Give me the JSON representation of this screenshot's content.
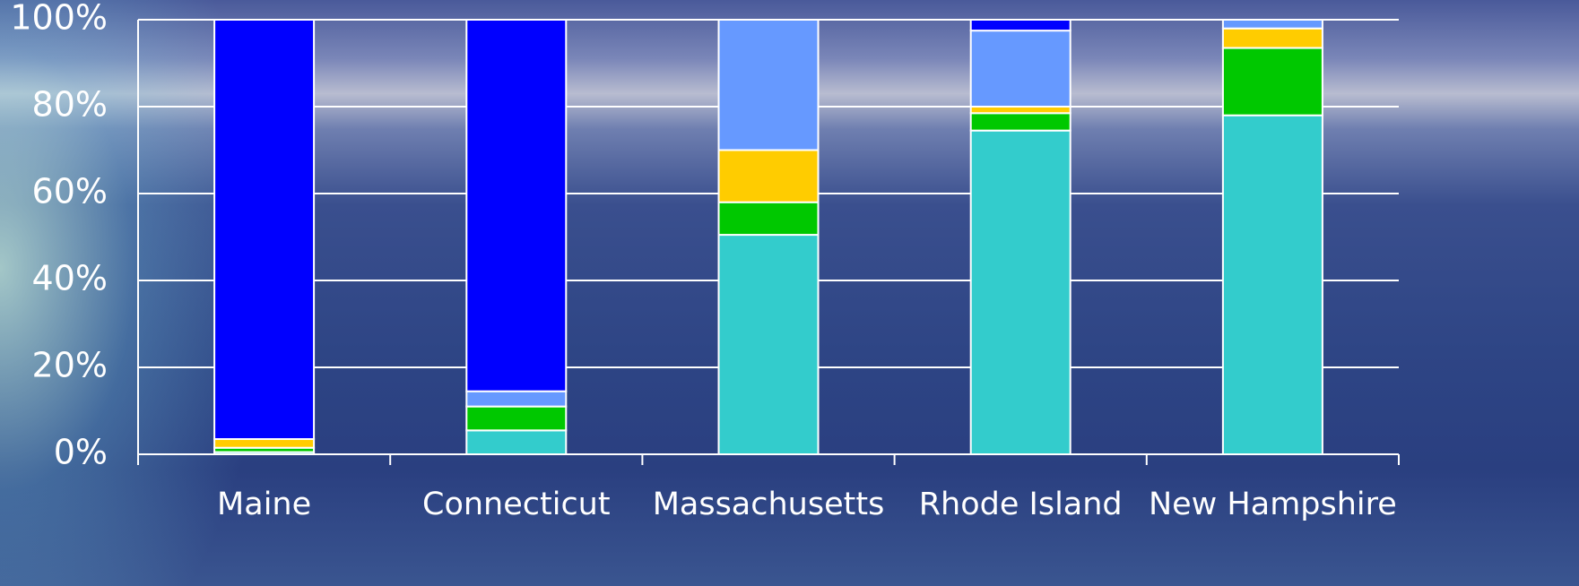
{
  "chart_data": {
    "type": "stacked_bar",
    "categories": [
      "Maine",
      "Connecticut",
      "Massachusetts",
      "Rhode Island",
      "New Hampshire"
    ],
    "series": [
      {
        "color": "#33cccc",
        "values": [
          0.5,
          5.5,
          50.5,
          74.5,
          78
        ]
      },
      {
        "color": "#00c800",
        "values": [
          1,
          5.5,
          7.5,
          4,
          15.5
        ]
      },
      {
        "color": "#ffcc00",
        "values": [
          2,
          0,
          12,
          1.5,
          4.5
        ]
      },
      {
        "color": "#6699ff",
        "values": [
          0,
          3.5,
          30,
          17.5,
          2
        ]
      },
      {
        "color": "#0000ff",
        "values": [
          96.5,
          85.5,
          0,
          2.5,
          0
        ]
      }
    ],
    "ylim": [
      0,
      100
    ],
    "yticks": [
      {
        "value": 0,
        "label": "0%"
      },
      {
        "value": 20,
        "label": "20%"
      },
      {
        "value": 40,
        "label": "40%"
      },
      {
        "value": 60,
        "label": "60%"
      },
      {
        "value": 80,
        "label": "80%"
      },
      {
        "value": 100,
        "label": "100%"
      }
    ],
    "grid": true
  }
}
